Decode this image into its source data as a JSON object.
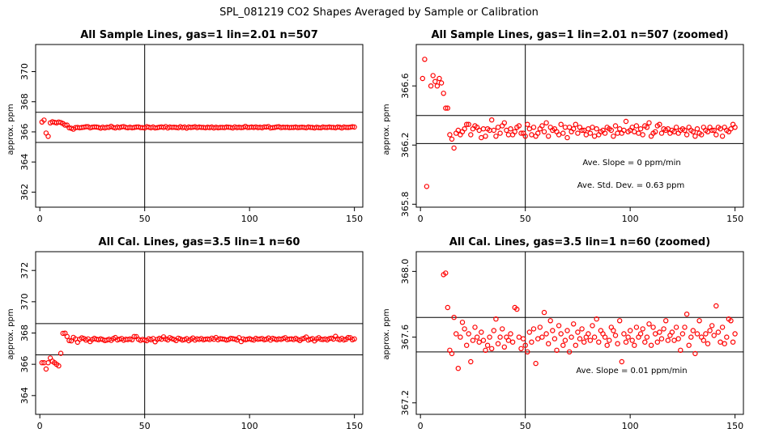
{
  "main_title": "SPL_081219  CO2 Shapes Averaged by Sample or Calibration",
  "chart_data": [
    {
      "type": "scatter",
      "title": "All Sample Lines, gas=1 lin=2.01 n=507",
      "xlabel": "",
      "ylabel": "approx. ppm",
      "xlim": [
        -2,
        154
      ],
      "ylim": [
        361.0,
        371.8
      ],
      "xticks": [
        0,
        50,
        100,
        150
      ],
      "yticks": [
        362,
        364,
        366,
        368,
        370
      ],
      "hlines": [
        365.3,
        367.3
      ],
      "vline": 50,
      "color": "#ff0000",
      "x": [
        1,
        2,
        3,
        4,
        5,
        6,
        7,
        8,
        9,
        10,
        11,
        12,
        13,
        14,
        15,
        16,
        17,
        18,
        19,
        20,
        21,
        22,
        23,
        24,
        25,
        26,
        27,
        28,
        29,
        30,
        31,
        32,
        33,
        34,
        35,
        36,
        37,
        38,
        39,
        40,
        41,
        42,
        43,
        44,
        45,
        46,
        47,
        48,
        49,
        50,
        51,
        52,
        53,
        54,
        55,
        56,
        57,
        58,
        59,
        60,
        61,
        62,
        63,
        64,
        65,
        66,
        67,
        68,
        69,
        70,
        71,
        72,
        73,
        74,
        75,
        76,
        77,
        78,
        79,
        80,
        81,
        82,
        83,
        84,
        85,
        86,
        87,
        88,
        89,
        90,
        91,
        92,
        93,
        94,
        95,
        96,
        97,
        98,
        99,
        100,
        101,
        102,
        103,
        104,
        105,
        106,
        107,
        108,
        109,
        110,
        111,
        112,
        113,
        114,
        115,
        116,
        117,
        118,
        119,
        120,
        121,
        122,
        123,
        124,
        125,
        126,
        127,
        128,
        129,
        130,
        131,
        132,
        133,
        134,
        135,
        136,
        137,
        138,
        139,
        140,
        141,
        142,
        143,
        144,
        145,
        146,
        147,
        148,
        149,
        150
      ],
      "y": [
        366.65,
        366.78,
        365.92,
        365.7,
        366.6,
        366.67,
        366.63,
        366.6,
        366.65,
        366.62,
        366.55,
        366.45,
        366.45,
        366.27,
        366.24,
        366.18,
        366.28,
        366.3,
        366.27,
        366.29,
        366.31,
        366.34,
        366.34,
        366.27,
        366.31,
        366.33,
        366.32,
        366.3,
        366.25,
        366.31,
        366.26,
        366.31,
        366.3,
        366.37,
        366.3,
        366.26,
        366.32,
        366.28,
        366.33,
        366.35,
        366.3,
        366.27,
        366.31,
        366.27,
        366.29,
        366.32,
        366.33,
        366.28,
        366.28,
        366.26,
        366.34,
        366.31,
        366.27,
        366.32,
        366.26,
        366.28,
        366.31,
        366.33,
        366.29,
        366.35,
        366.26,
        366.32,
        366.3,
        366.31,
        366.29,
        366.27,
        366.34,
        366.28,
        366.32,
        366.25,
        366.32,
        366.29,
        366.31,
        366.34,
        366.28,
        366.32,
        366.3,
        366.3,
        366.27,
        366.31,
        366.28,
        366.32,
        366.26,
        366.31,
        366.27,
        366.29,
        366.3,
        366.28,
        366.32,
        366.31,
        366.3,
        366.26,
        366.33,
        366.28,
        366.31,
        366.28,
        366.3,
        366.36,
        366.29,
        366.3,
        366.32,
        366.29,
        366.33,
        366.28,
        366.31,
        366.27,
        366.33,
        366.32,
        366.35,
        366.26,
        366.28,
        366.29,
        366.33,
        366.34,
        366.28,
        366.31,
        366.3,
        366.31,
        366.28,
        366.3,
        366.29,
        366.32,
        366.28,
        366.3,
        366.31,
        366.3,
        366.27,
        366.32,
        366.3,
        366.29,
        366.26,
        366.31,
        366.28,
        366.27,
        366.32,
        366.3,
        366.29,
        366.32,
        366.3,
        366.3,
        366.27,
        366.32,
        366.31,
        366.26,
        366.32,
        366.3,
        366.29,
        366.31,
        366.34,
        366.32
      ]
    },
    {
      "type": "scatter",
      "title": "All Sample Lines, gas=1 lin=2.01 n=507 (zoomed)",
      "xlabel": "",
      "ylabel": "approx. ppm",
      "xlim": [
        -2,
        154
      ],
      "ylim": [
        365.78,
        366.88
      ],
      "xticks": [
        0,
        50,
        100,
        150
      ],
      "yticks": [
        365.8,
        366.2,
        366.6
      ],
      "hlines": [
        366.4,
        366.21
      ],
      "vline": 50,
      "color": "#ff0000",
      "annotations": [
        "Ave. Slope =  0  ppm/min",
        "Ave. Std. Dev. =  0.63  ppm"
      ],
      "x": [
        1,
        2,
        3,
        4,
        5,
        6,
        7,
        8,
        9,
        10,
        11,
        12,
        13,
        14,
        15,
        16,
        17,
        18,
        19,
        20,
        21,
        22,
        23,
        24,
        25,
        26,
        27,
        28,
        29,
        30,
        31,
        32,
        33,
        34,
        35,
        36,
        37,
        38,
        39,
        40,
        41,
        42,
        43,
        44,
        45,
        46,
        47,
        48,
        49,
        50,
        51,
        52,
        53,
        54,
        55,
        56,
        57,
        58,
        59,
        60,
        61,
        62,
        63,
        64,
        65,
        66,
        67,
        68,
        69,
        70,
        71,
        72,
        73,
        74,
        75,
        76,
        77,
        78,
        79,
        80,
        81,
        82,
        83,
        84,
        85,
        86,
        87,
        88,
        89,
        90,
        91,
        92,
        93,
        94,
        95,
        96,
        97,
        98,
        99,
        100,
        101,
        102,
        103,
        104,
        105,
        106,
        107,
        108,
        109,
        110,
        111,
        112,
        113,
        114,
        115,
        116,
        117,
        118,
        119,
        120,
        121,
        122,
        123,
        124,
        125,
        126,
        127,
        128,
        129,
        130,
        131,
        132,
        133,
        134,
        135,
        136,
        137,
        138,
        139,
        140,
        141,
        142,
        143,
        144,
        145,
        146,
        147,
        148,
        149,
        150
      ],
      "y": [
        366.65,
        366.78,
        365.92,
        365.7,
        366.6,
        366.67,
        366.63,
        366.6,
        366.65,
        366.62,
        366.55,
        366.45,
        366.45,
        366.27,
        366.24,
        366.18,
        366.28,
        366.3,
        366.27,
        366.29,
        366.31,
        366.34,
        366.34,
        366.27,
        366.31,
        366.33,
        366.32,
        366.3,
        366.25,
        366.31,
        366.26,
        366.31,
        366.3,
        366.37,
        366.3,
        366.26,
        366.32,
        366.28,
        366.33,
        366.35,
        366.3,
        366.27,
        366.31,
        366.27,
        366.29,
        366.32,
        366.33,
        366.28,
        366.28,
        366.26,
        366.34,
        366.31,
        366.27,
        366.32,
        366.26,
        366.28,
        366.31,
        366.33,
        366.29,
        366.35,
        366.26,
        366.32,
        366.3,
        366.31,
        366.29,
        366.27,
        366.34,
        366.28,
        366.32,
        366.25,
        366.32,
        366.29,
        366.31,
        366.34,
        366.28,
        366.32,
        366.3,
        366.3,
        366.27,
        366.31,
        366.28,
        366.32,
        366.26,
        366.31,
        366.27,
        366.29,
        366.3,
        366.28,
        366.32,
        366.31,
        366.3,
        366.26,
        366.33,
        366.28,
        366.31,
        366.28,
        366.3,
        366.36,
        366.29,
        366.3,
        366.32,
        366.29,
        366.33,
        366.28,
        366.31,
        366.27,
        366.33,
        366.32,
        366.35,
        366.26,
        366.28,
        366.29,
        366.33,
        366.34,
        366.28,
        366.31,
        366.3,
        366.31,
        366.28,
        366.3,
        366.29,
        366.32,
        366.28,
        366.3,
        366.31,
        366.3,
        366.27,
        366.32,
        366.3,
        366.29,
        366.26,
        366.31,
        366.28,
        366.27,
        366.32,
        366.3,
        366.29,
        366.32,
        366.3,
        366.3,
        366.27,
        366.32,
        366.31,
        366.26,
        366.32,
        366.3,
        366.29,
        366.31,
        366.34,
        366.32
      ]
    },
    {
      "type": "scatter",
      "title": "All Cal. Lines, gas=3.5 lin=1 n=60",
      "xlabel": "",
      "ylabel": "approx. ppm",
      "xlim": [
        -2,
        154
      ],
      "ylim": [
        362.8,
        373.2
      ],
      "xticks": [
        0,
        50,
        100,
        150
      ],
      "yticks": [
        364,
        366,
        368,
        370,
        372
      ],
      "hlines": [
        368.6,
        366.6
      ],
      "vline": 50,
      "color": "#ff0000",
      "x": [
        1,
        2,
        3,
        4,
        5,
        6,
        7,
        8,
        9,
        10,
        11,
        12,
        13,
        14,
        15,
        16,
        17,
        18,
        19,
        20,
        21,
        22,
        23,
        24,
        25,
        26,
        27,
        28,
        29,
        30,
        31,
        32,
        33,
        34,
        35,
        36,
        37,
        38,
        39,
        40,
        41,
        42,
        43,
        44,
        45,
        46,
        47,
        48,
        49,
        50,
        51,
        52,
        53,
        54,
        55,
        56,
        57,
        58,
        59,
        60,
        61,
        62,
        63,
        64,
        65,
        66,
        67,
        68,
        69,
        70,
        71,
        72,
        73,
        74,
        75,
        76,
        77,
        78,
        79,
        80,
        81,
        82,
        83,
        84,
        85,
        86,
        87,
        88,
        89,
        90,
        91,
        92,
        93,
        94,
        95,
        96,
        97,
        98,
        99,
        100,
        101,
        102,
        103,
        104,
        105,
        106,
        107,
        108,
        109,
        110,
        111,
        112,
        113,
        114,
        115,
        116,
        117,
        118,
        119,
        120,
        121,
        122,
        123,
        124,
        125,
        126,
        127,
        128,
        129,
        130,
        131,
        132,
        133,
        134,
        135,
        136,
        137,
        138,
        139,
        140,
        141,
        142,
        143,
        144,
        145,
        146,
        147,
        148,
        149,
        150
      ],
      "y": [
        366.1,
        366.1,
        365.7,
        366.1,
        366.4,
        366.2,
        366.1,
        366.0,
        365.9,
        366.7,
        367.98,
        367.99,
        367.78,
        367.52,
        367.5,
        367.72,
        367.62,
        367.41,
        367.6,
        367.69,
        367.65,
        367.55,
        367.62,
        367.45,
        367.58,
        367.66,
        367.6,
        367.57,
        367.63,
        367.58,
        367.52,
        367.55,
        367.6,
        367.53,
        367.64,
        367.71,
        367.56,
        367.6,
        367.65,
        367.54,
        367.6,
        367.58,
        367.62,
        367.57,
        367.78,
        367.77,
        367.6,
        367.53,
        367.59,
        367.55,
        367.51,
        367.63,
        367.57,
        367.65,
        367.44,
        367.59,
        367.66,
        367.6,
        367.75,
        367.62,
        367.56,
        367.7,
        367.64,
        367.59,
        367.52,
        367.67,
        367.62,
        367.55,
        367.58,
        367.64,
        367.51,
        367.6,
        367.68,
        367.55,
        367.63,
        367.59,
        367.65,
        367.57,
        367.6,
        367.62,
        367.58,
        367.67,
        367.6,
        367.71,
        367.57,
        367.64,
        367.62,
        367.6,
        367.55,
        367.58,
        367.66,
        367.64,
        367.61,
        367.56,
        367.7,
        367.45,
        367.62,
        367.57,
        367.6,
        367.64,
        367.58,
        367.55,
        367.66,
        367.6,
        367.62,
        367.65,
        367.57,
        367.6,
        367.68,
        367.55,
        367.66,
        367.62,
        367.57,
        367.63,
        367.59,
        367.65,
        367.7,
        367.58,
        367.61,
        367.63,
        367.58,
        367.66,
        367.59,
        367.52,
        367.62,
        367.66,
        367.74,
        367.55,
        367.6,
        367.64,
        367.5,
        367.62,
        367.7,
        367.6,
        367.58,
        367.62,
        367.56,
        367.64,
        367.67,
        367.61,
        367.79,
        367.63,
        367.57,
        367.66,
        367.56,
        367.6,
        367.71,
        367.7,
        367.57,
        367.62
      ]
    },
    {
      "type": "scatter",
      "title": "All Cal. Lines, gas=3.5 lin=1 n=60 (zoomed)",
      "xlabel": "",
      "ylabel": "approx. ppm",
      "xlim": [
        -2,
        154
      ],
      "ylim": [
        367.13,
        368.12
      ],
      "xticks": [
        0,
        50,
        100,
        150
      ],
      "yticks": [
        367.2,
        367.6,
        368.0
      ],
      "hlines": [
        367.72,
        367.51
      ],
      "vline": 50,
      "color": "#ff0000",
      "annotations": [
        "Ave. Slope =  0.01  ppm/min"
      ],
      "x": [
        11,
        12,
        13,
        14,
        15,
        16,
        17,
        18,
        19,
        20,
        21,
        22,
        23,
        24,
        25,
        26,
        27,
        28,
        29,
        30,
        31,
        32,
        33,
        34,
        35,
        36,
        37,
        38,
        39,
        40,
        41,
        42,
        43,
        44,
        45,
        46,
        47,
        48,
        49,
        50,
        51,
        52,
        53,
        54,
        55,
        56,
        57,
        58,
        59,
        60,
        61,
        62,
        63,
        64,
        65,
        66,
        67,
        68,
        69,
        70,
        71,
        72,
        73,
        74,
        75,
        76,
        77,
        78,
        79,
        80,
        81,
        82,
        83,
        84,
        85,
        86,
        87,
        88,
        89,
        90,
        91,
        92,
        93,
        94,
        95,
        96,
        97,
        98,
        99,
        100,
        101,
        102,
        103,
        104,
        105,
        106,
        107,
        108,
        109,
        110,
        111,
        112,
        113,
        114,
        115,
        116,
        117,
        118,
        119,
        120,
        121,
        122,
        123,
        124,
        125,
        126,
        127,
        128,
        129,
        130,
        131,
        132,
        133,
        134,
        135,
        136,
        137,
        138,
        139,
        140,
        141,
        142,
        143,
        144,
        145,
        146,
        147,
        148,
        149,
        150
      ],
      "y": [
        367.98,
        367.99,
        367.78,
        367.52,
        367.5,
        367.72,
        367.62,
        367.41,
        367.6,
        367.69,
        367.65,
        367.55,
        367.62,
        367.45,
        367.58,
        367.66,
        367.6,
        367.57,
        367.63,
        367.58,
        367.52,
        367.55,
        367.6,
        367.53,
        367.64,
        367.71,
        367.56,
        367.6,
        367.65,
        367.54,
        367.6,
        367.58,
        367.62,
        367.57,
        367.78,
        367.77,
        367.6,
        367.53,
        367.59,
        367.55,
        367.51,
        367.63,
        367.57,
        367.65,
        367.44,
        367.59,
        367.66,
        367.6,
        367.75,
        367.62,
        367.56,
        367.7,
        367.64,
        367.59,
        367.52,
        367.67,
        367.62,
        367.55,
        367.58,
        367.64,
        367.51,
        367.6,
        367.68,
        367.55,
        367.63,
        367.59,
        367.65,
        367.57,
        367.6,
        367.62,
        367.58,
        367.67,
        367.6,
        367.71,
        367.57,
        367.64,
        367.62,
        367.6,
        367.55,
        367.58,
        367.66,
        367.64,
        367.61,
        367.56,
        367.7,
        367.45,
        367.62,
        367.57,
        367.6,
        367.64,
        367.58,
        367.55,
        367.66,
        367.6,
        367.62,
        367.65,
        367.57,
        367.6,
        367.68,
        367.55,
        367.66,
        367.62,
        367.57,
        367.63,
        367.59,
        367.65,
        367.7,
        367.58,
        367.61,
        367.63,
        367.58,
        367.66,
        367.59,
        367.52,
        367.62,
        367.66,
        367.74,
        367.55,
        367.6,
        367.64,
        367.5,
        367.62,
        367.7,
        367.6,
        367.58,
        367.62,
        367.56,
        367.64,
        367.67,
        367.61,
        367.79,
        367.63,
        367.57,
        367.66,
        367.56,
        367.6,
        367.71,
        367.7,
        367.57,
        367.62
      ]
    }
  ]
}
